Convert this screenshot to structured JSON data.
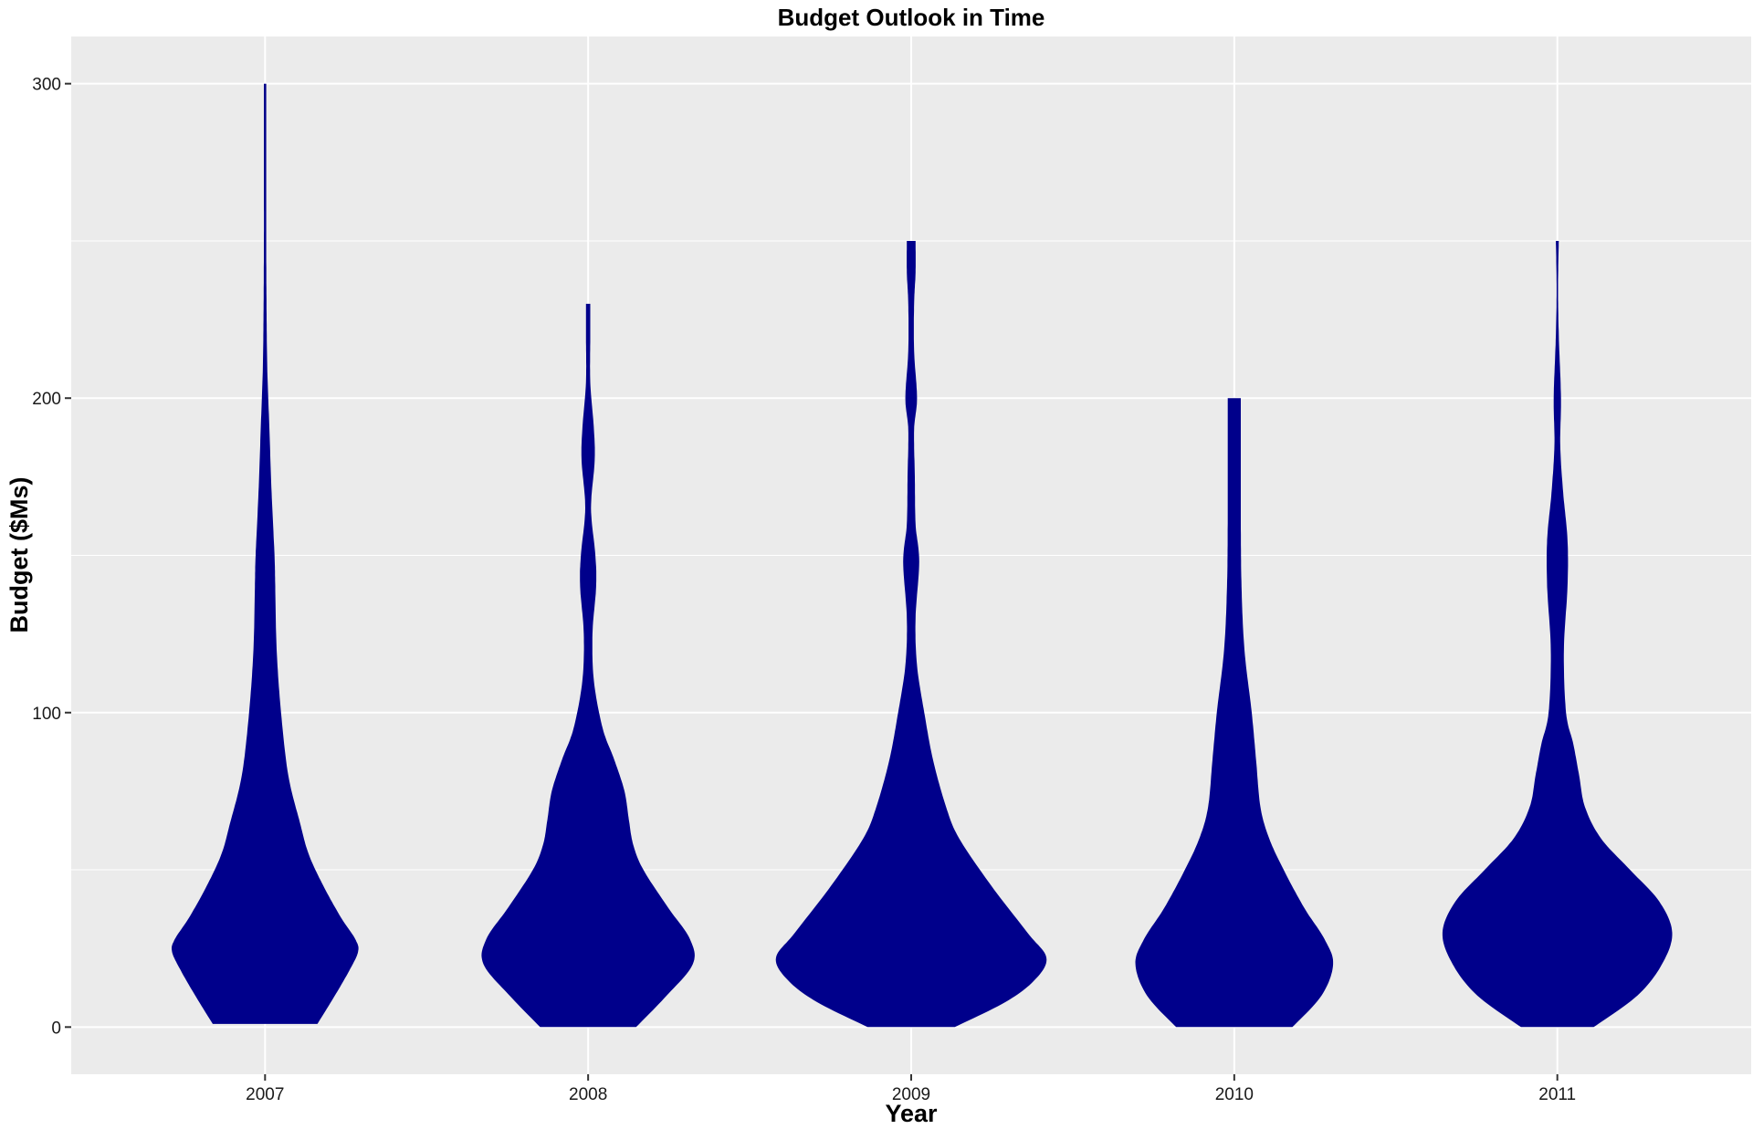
{
  "chart_data": {
    "type": "violin",
    "title": "Budget Outlook in Time",
    "xlabel": "Year",
    "ylabel": "Budget ($Ms)",
    "categories": [
      "2007",
      "2008",
      "2009",
      "2010",
      "2011"
    ],
    "y_ticks": [
      0,
      100,
      200,
      300
    ],
    "y_tick_labels": [
      "0",
      "100",
      "200",
      "300"
    ],
    "ylim": [
      -15,
      315
    ],
    "grid": true,
    "fill_color": "#00008B",
    "panel_color": "#EBEBEB",
    "grid_color": "#FFFFFF",
    "series": [
      {
        "category": "2007",
        "min": 1,
        "max": 300,
        "profile": [
          [
            1,
            0.36
          ],
          [
            10,
            0.48
          ],
          [
            18,
            0.58
          ],
          [
            24,
            0.64
          ],
          [
            28,
            0.62
          ],
          [
            35,
            0.52
          ],
          [
            45,
            0.4
          ],
          [
            55,
            0.3
          ],
          [
            65,
            0.24
          ],
          [
            80,
            0.16
          ],
          [
            100,
            0.11
          ],
          [
            120,
            0.08
          ],
          [
            140,
            0.07
          ],
          [
            150,
            0.065
          ],
          [
            170,
            0.045
          ],
          [
            190,
            0.03
          ],
          [
            210,
            0.015
          ],
          [
            230,
            0.01
          ],
          [
            250,
            0.008
          ],
          [
            270,
            0.008
          ],
          [
            300,
            0.008
          ]
        ]
      },
      {
        "category": "2008",
        "min": 0,
        "max": 230,
        "profile": [
          [
            0,
            0.33
          ],
          [
            10,
            0.54
          ],
          [
            20,
            0.72
          ],
          [
            28,
            0.7
          ],
          [
            38,
            0.55
          ],
          [
            50,
            0.38
          ],
          [
            58,
            0.31
          ],
          [
            66,
            0.28
          ],
          [
            75,
            0.25
          ],
          [
            85,
            0.18
          ],
          [
            95,
            0.1
          ],
          [
            110,
            0.04
          ],
          [
            125,
            0.03
          ],
          [
            140,
            0.055
          ],
          [
            150,
            0.05
          ],
          [
            165,
            0.02
          ],
          [
            180,
            0.045
          ],
          [
            190,
            0.04
          ],
          [
            205,
            0.015
          ],
          [
            220,
            0.015
          ],
          [
            230,
            0.015
          ]
        ]
      },
      {
        "category": "2009",
        "min": 0,
        "max": 250,
        "profile": [
          [
            0,
            0.3
          ],
          [
            8,
            0.65
          ],
          [
            15,
            0.85
          ],
          [
            22,
            0.93
          ],
          [
            30,
            0.8
          ],
          [
            45,
            0.55
          ],
          [
            60,
            0.33
          ],
          [
            70,
            0.24
          ],
          [
            85,
            0.15
          ],
          [
            100,
            0.09
          ],
          [
            115,
            0.04
          ],
          [
            130,
            0.03
          ],
          [
            148,
            0.055
          ],
          [
            160,
            0.03
          ],
          [
            175,
            0.025
          ],
          [
            190,
            0.02
          ],
          [
            200,
            0.04
          ],
          [
            215,
            0.02
          ],
          [
            230,
            0.02
          ],
          [
            240,
            0.03
          ],
          [
            250,
            0.03
          ]
        ]
      },
      {
        "category": "2010",
        "min": 0,
        "max": 200,
        "profile": [
          [
            0,
            0.4
          ],
          [
            10,
            0.6
          ],
          [
            20,
            0.68
          ],
          [
            28,
            0.62
          ],
          [
            38,
            0.48
          ],
          [
            50,
            0.34
          ],
          [
            60,
            0.24
          ],
          [
            70,
            0.18
          ],
          [
            85,
            0.15
          ],
          [
            100,
            0.12
          ],
          [
            120,
            0.07
          ],
          [
            140,
            0.05
          ],
          [
            160,
            0.045
          ],
          [
            180,
            0.045
          ],
          [
            200,
            0.045
          ]
        ]
      },
      {
        "category": "2011",
        "min": 0,
        "max": 250,
        "profile": [
          [
            0,
            0.25
          ],
          [
            10,
            0.55
          ],
          [
            20,
            0.72
          ],
          [
            30,
            0.79
          ],
          [
            40,
            0.7
          ],
          [
            50,
            0.5
          ],
          [
            60,
            0.3
          ],
          [
            70,
            0.19
          ],
          [
            80,
            0.15
          ],
          [
            90,
            0.11
          ],
          [
            100,
            0.06
          ],
          [
            120,
            0.045
          ],
          [
            140,
            0.07
          ],
          [
            155,
            0.07
          ],
          [
            170,
            0.04
          ],
          [
            185,
            0.02
          ],
          [
            200,
            0.025
          ],
          [
            220,
            0.01
          ],
          [
            235,
            0.005
          ],
          [
            250,
            0.01
          ]
        ]
      }
    ]
  }
}
